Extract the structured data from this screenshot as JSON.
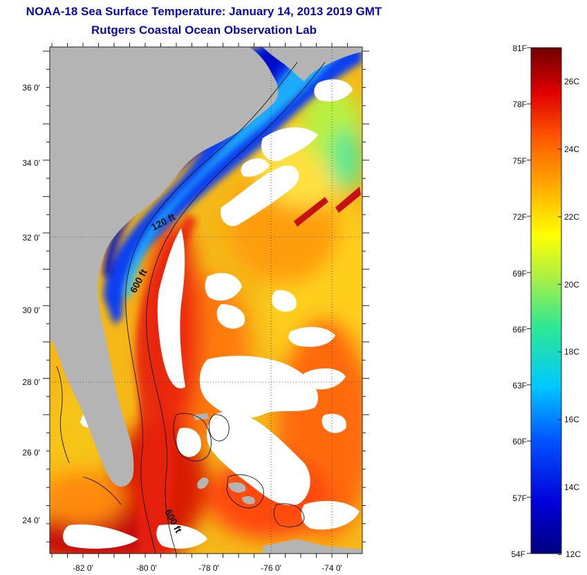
{
  "title": {
    "line1": "NOAA-18 Sea Surface Temperature:  January 14, 2013 2019 GMT",
    "line2": "Rutgers Coastal Ocean Observation Lab"
  },
  "map": {
    "lat_labels": [
      "36 0'",
      "34 0'",
      "32 0'",
      "30 0'",
      "28 0'",
      "26 0'",
      "24 0'"
    ],
    "lon_labels": [
      "-82 0'",
      "-80 0'",
      "-78 0'",
      "-76 0'",
      "-74 0'"
    ],
    "contour_labels": [
      "120 ft",
      "600 ft",
      "600 ft"
    ]
  },
  "colorbar": {
    "fahrenheit_labels": [
      "81F",
      "78F",
      "75F",
      "72F",
      "69F",
      "66F",
      "63F",
      "60F",
      "57F",
      "54F"
    ],
    "celsius_labels": [
      "26C",
      "24C",
      "22C",
      "20C",
      "18C",
      "16C",
      "14C",
      "12C"
    ]
  },
  "colors": {
    "title": "#0a0aa8",
    "land": "#b4b4b4",
    "cloud": "#ffffff"
  }
}
